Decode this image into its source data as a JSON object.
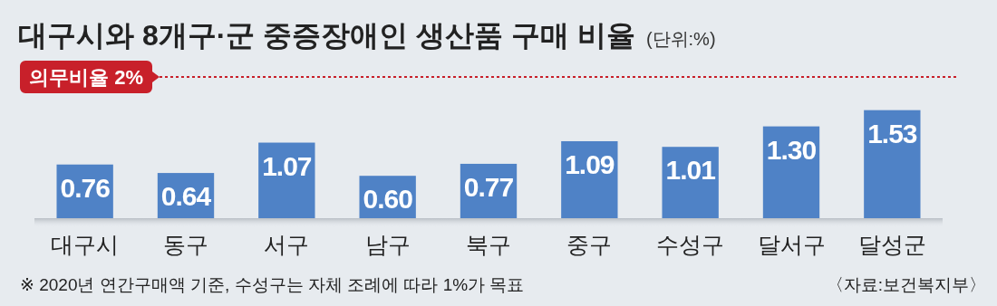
{
  "chart_data": {
    "type": "bar",
    "title": "대구시와 8개구·군 중증장애인 생산품 구매 비율",
    "subtitle": "(단위:%)",
    "categories": [
      "대구시",
      "동구",
      "서구",
      "남구",
      "북구",
      "중구",
      "수성구",
      "달서구",
      "달성군"
    ],
    "values": [
      0.76,
      0.64,
      1.07,
      0.6,
      0.77,
      1.09,
      1.01,
      1.3,
      1.53
    ],
    "color": "#4f82c6",
    "value_labels": [
      "0.76",
      "0.64",
      "1.07",
      "0.60",
      "0.77",
      "1.09",
      "1.01",
      "1.30",
      "1.53"
    ],
    "tick_labels": "x",
    "ref_lines": [
      {
        "axis": "y",
        "value": 2,
        "label": "의무비율 2%",
        "color": "#c8202a",
        "line_style": "dotted"
      }
    ],
    "annotations": [
      "※ 2020년 연간구매액 기준, 수성구는 자체 조례에 따라 1%가 목표",
      "〈자료:보건복지부〉"
    ]
  }
}
